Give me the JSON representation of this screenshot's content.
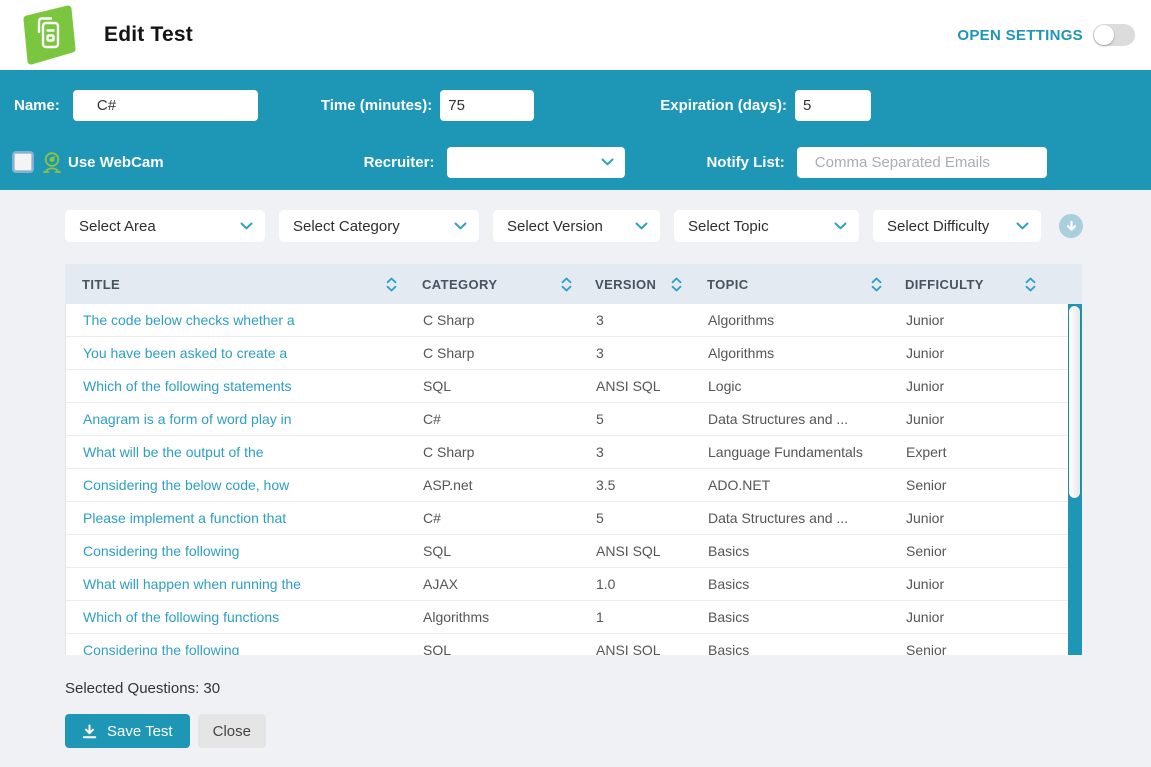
{
  "header": {
    "title": "Edit Test",
    "open_settings": "OPEN SETTINGS"
  },
  "settings_band": {
    "name_label": "Name:",
    "name_value": "C#",
    "time_label": "Time (minutes):",
    "time_value": "75",
    "expiration_label": "Expiration (days):",
    "expiration_value": "5",
    "webcam_label": "Use WebCam",
    "recruiter_label": "Recruiter:",
    "recruiter_value": "",
    "notify_label": "Notify List:",
    "notify_placeholder": "Comma Separated Emails"
  },
  "filters": {
    "area": "Select Area",
    "category": "Select Category",
    "version": "Select Version",
    "topic": "Select Topic",
    "difficulty": "Select Difficulty"
  },
  "table": {
    "columns": [
      "TITLE",
      "CATEGORY",
      "VERSION",
      "TOPIC",
      "DIFFICULTY"
    ],
    "rows": [
      {
        "title": "The code below checks whether a",
        "category": "C Sharp",
        "version": "3",
        "topic": "Algorithms",
        "difficulty": "Junior"
      },
      {
        "title": "You have been asked to create a",
        "category": "C Sharp",
        "version": "3",
        "topic": "Algorithms",
        "difficulty": "Junior"
      },
      {
        "title": "Which of the following statements",
        "category": "SQL",
        "version": "ANSI SQL",
        "topic": "Logic",
        "difficulty": "Junior"
      },
      {
        "title": "Anagram is a form of word play in",
        "category": "C#",
        "version": "5",
        "topic": "Data Structures and ...",
        "difficulty": "Junior"
      },
      {
        "title": "What will be the output of the",
        "category": "C Sharp",
        "version": "3",
        "topic": "Language Fundamentals",
        "difficulty": "Expert"
      },
      {
        "title": "Considering the below code, how",
        "category": "ASP.net",
        "version": "3.5",
        "topic": "ADO.NET",
        "difficulty": "Senior"
      },
      {
        "title": "Please implement a function that",
        "category": "C#",
        "version": "5",
        "topic": "Data Structures and ...",
        "difficulty": "Junior"
      },
      {
        "title": "Considering the following",
        "category": "SQL",
        "version": "ANSI SQL",
        "topic": "Basics",
        "difficulty": "Senior"
      },
      {
        "title": "What will happen when running the",
        "category": "AJAX",
        "version": "1.0",
        "topic": "Basics",
        "difficulty": "Junior"
      },
      {
        "title": "Which of the following functions",
        "category": "Algorithms",
        "version": "1",
        "topic": "Basics",
        "difficulty": "Junior"
      },
      {
        "title": "Considering the following",
        "category": "SQL",
        "version": "ANSI SQL",
        "topic": "Basics",
        "difficulty": "Senior"
      }
    ]
  },
  "footer": {
    "selected_questions": "Selected Questions: 30",
    "save_label": "Save Test",
    "close_label": "Close"
  },
  "colors": {
    "teal": "#1e96b5",
    "logo_green": "#7ac63e",
    "webcam_green": "#8bc53f",
    "link_teal": "#2d9fc3",
    "table_header_bg": "#e3eaf2"
  }
}
